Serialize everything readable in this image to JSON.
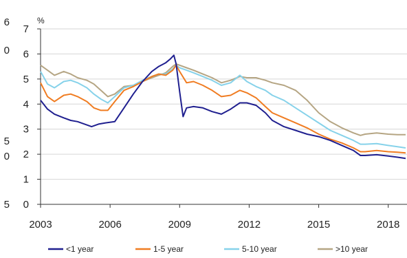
{
  "chart_data": {
    "type": "line",
    "y_unit": "%",
    "ylim": [
      0,
      7
    ],
    "y_ticks": [
      0,
      1,
      2,
      3,
      4,
      5,
      6,
      7
    ],
    "xlim": [
      2003,
      2018.75
    ],
    "x_ticks": [
      2003,
      2006,
      2009,
      2012,
      2015,
      2018
    ],
    "x_tick_labels": [
      "2003",
      "2006",
      "2009",
      "2012",
      "2015",
      "2018"
    ],
    "left_edge_ticks": [
      "6",
      "0",
      "5",
      "0",
      "5"
    ],
    "grid": "horizontal",
    "legend_position": "bottom",
    "series": [
      {
        "name": "<1 year",
        "color": "#1f1f8f",
        "x": [
          2003.0,
          2003.3,
          2003.6,
          2004.0,
          2004.3,
          2004.6,
          2004.9,
          2005.2,
          2005.5,
          2005.8,
          2006.2,
          2006.6,
          2007.0,
          2007.4,
          2007.8,
          2008.1,
          2008.4,
          2008.6,
          2008.75,
          2008.85,
          2009.0,
          2009.15,
          2009.3,
          2009.6,
          2010.0,
          2010.4,
          2010.8,
          2011.2,
          2011.6,
          2011.9,
          2012.3,
          2012.7,
          2013.0,
          2013.5,
          2014.0,
          2014.5,
          2015.0,
          2015.5,
          2016.0,
          2016.5,
          2016.8,
          2017.0,
          2017.5,
          2018.0,
          2018.4,
          2018.75
        ],
        "y": [
          4.15,
          3.8,
          3.6,
          3.45,
          3.35,
          3.3,
          3.2,
          3.1,
          3.2,
          3.25,
          3.3,
          3.85,
          4.4,
          4.9,
          5.3,
          5.5,
          5.65,
          5.8,
          5.95,
          5.6,
          4.5,
          3.5,
          3.85,
          3.9,
          3.85,
          3.7,
          3.6,
          3.8,
          4.05,
          4.05,
          3.95,
          3.65,
          3.35,
          3.1,
          2.95,
          2.8,
          2.7,
          2.55,
          2.35,
          2.15,
          1.95,
          1.95,
          1.98,
          1.93,
          1.88,
          1.83
        ]
      },
      {
        "name": "1-5 year",
        "color": "#f07c21",
        "x": [
          2003.0,
          2003.3,
          2003.6,
          2004.0,
          2004.3,
          2004.6,
          2005.0,
          2005.3,
          2005.6,
          2005.9,
          2006.2,
          2006.6,
          2007.0,
          2007.4,
          2007.8,
          2008.1,
          2008.4,
          2008.7,
          2008.85,
          2009.0,
          2009.3,
          2009.6,
          2010.0,
          2010.4,
          2010.8,
          2011.2,
          2011.6,
          2011.9,
          2012.3,
          2012.7,
          2013.0,
          2013.5,
          2014.0,
          2014.5,
          2015.0,
          2015.5,
          2016.0,
          2016.5,
          2016.8,
          2017.0,
          2017.5,
          2018.0,
          2018.4,
          2018.75
        ],
        "y": [
          4.85,
          4.3,
          4.1,
          4.35,
          4.4,
          4.3,
          4.1,
          3.85,
          3.75,
          3.75,
          4.1,
          4.55,
          4.7,
          4.9,
          5.1,
          5.2,
          5.15,
          5.35,
          5.55,
          5.3,
          4.85,
          4.9,
          4.75,
          4.55,
          4.3,
          4.35,
          4.55,
          4.45,
          4.25,
          3.9,
          3.65,
          3.45,
          3.25,
          3.05,
          2.8,
          2.6,
          2.45,
          2.25,
          2.1,
          2.1,
          2.15,
          2.1,
          2.08,
          2.05
        ]
      },
      {
        "name": "5-10 year",
        "color": "#86d2ea",
        "x": [
          2003.0,
          2003.3,
          2003.6,
          2004.0,
          2004.3,
          2004.6,
          2005.0,
          2005.3,
          2005.6,
          2005.9,
          2006.2,
          2006.6,
          2007.0,
          2007.4,
          2007.8,
          2008.1,
          2008.4,
          2008.7,
          2008.85,
          2009.0,
          2009.3,
          2009.6,
          2010.0,
          2010.4,
          2010.8,
          2011.2,
          2011.6,
          2011.9,
          2012.3,
          2012.7,
          2013.0,
          2013.5,
          2014.0,
          2014.5,
          2015.0,
          2015.5,
          2016.0,
          2016.5,
          2016.8,
          2017.0,
          2017.5,
          2018.0,
          2018.4,
          2018.75
        ],
        "y": [
          5.3,
          4.8,
          4.65,
          4.9,
          4.95,
          4.85,
          4.65,
          4.4,
          4.2,
          4.05,
          4.3,
          4.65,
          4.75,
          4.95,
          5.1,
          5.2,
          5.2,
          5.4,
          5.55,
          5.45,
          5.35,
          5.25,
          5.1,
          4.95,
          4.75,
          4.85,
          5.15,
          4.9,
          4.7,
          4.55,
          4.35,
          4.15,
          3.85,
          3.55,
          3.25,
          2.95,
          2.75,
          2.55,
          2.4,
          2.4,
          2.42,
          2.35,
          2.3,
          2.25
        ]
      },
      {
        "name": ">10 year",
        "color": "#b5a583",
        "x": [
          2003.0,
          2003.3,
          2003.6,
          2004.0,
          2004.3,
          2004.6,
          2005.0,
          2005.3,
          2005.6,
          2005.9,
          2006.2,
          2006.6,
          2007.0,
          2007.4,
          2007.8,
          2008.1,
          2008.4,
          2008.7,
          2008.85,
          2009.0,
          2009.3,
          2009.6,
          2010.0,
          2010.4,
          2010.8,
          2011.2,
          2011.6,
          2011.9,
          2012.3,
          2012.7,
          2013.0,
          2013.5,
          2014.0,
          2014.5,
          2015.0,
          2015.5,
          2016.0,
          2016.5,
          2016.8,
          2017.0,
          2017.5,
          2018.0,
          2018.4,
          2018.75
        ],
        "y": [
          5.55,
          5.35,
          5.15,
          5.3,
          5.2,
          5.05,
          4.95,
          4.8,
          4.55,
          4.3,
          4.4,
          4.7,
          4.75,
          4.9,
          5.05,
          5.15,
          5.25,
          5.5,
          5.6,
          5.55,
          5.45,
          5.35,
          5.2,
          5.05,
          4.85,
          4.95,
          5.1,
          5.05,
          5.05,
          4.95,
          4.85,
          4.75,
          4.55,
          4.15,
          3.65,
          3.3,
          3.05,
          2.85,
          2.75,
          2.8,
          2.85,
          2.8,
          2.78,
          2.78
        ]
      }
    ]
  }
}
